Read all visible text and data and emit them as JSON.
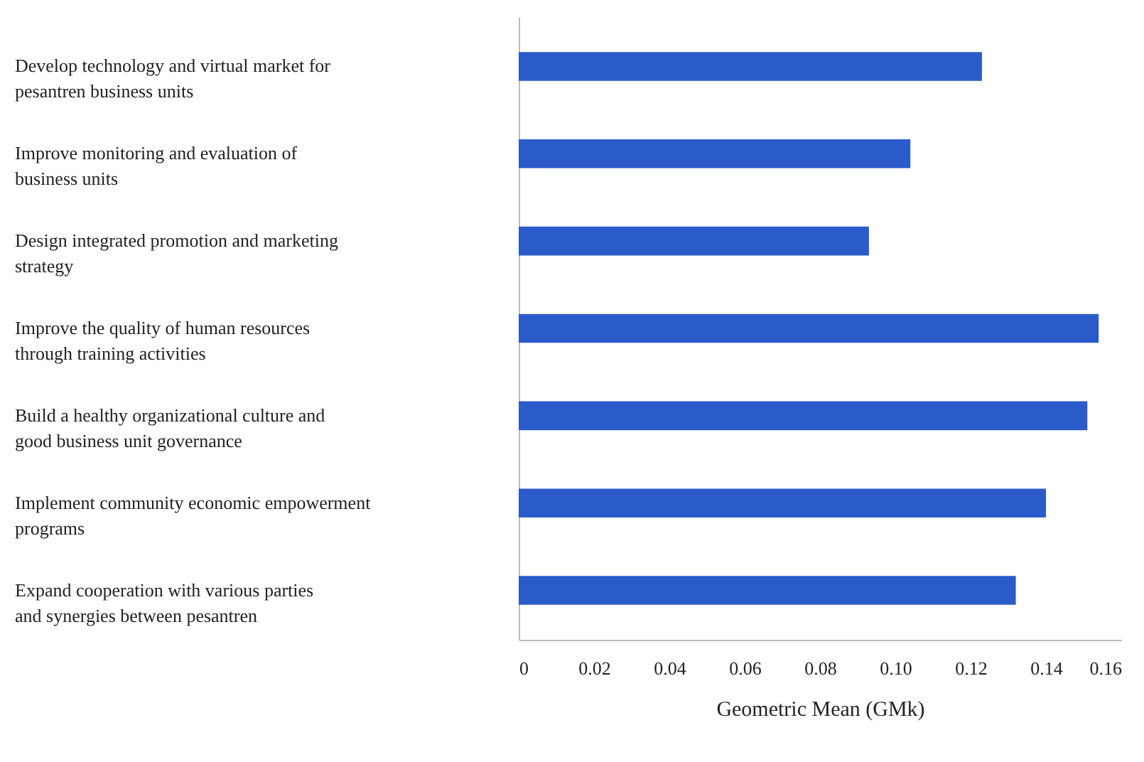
{
  "chart_data": {
    "type": "bar",
    "orientation": "horizontal",
    "xlabel": "Geometric Mean (GMk)",
    "categories": [
      "Develop technology and virtual market for pesantren business units",
      "Improve monitoring and evaluation of business units",
      "Design integrated promotion and marketing strategy",
      "Improve the quality of human resources through training activities",
      "Build a healthy organizational culture and good business unit governance",
      "Implement community economic empowerment programs",
      "Expand cooperation with various parties and synergies between pesantren"
    ],
    "values": [
      0.123,
      0.104,
      0.093,
      0.154,
      0.151,
      0.14,
      0.132
    ],
    "color": "#2a5bc8",
    "xlim": [
      0,
      0.16
    ],
    "xticks": [
      0,
      0.02,
      0.04,
      0.06,
      0.08,
      {
        "value": 0.1,
        "label": "0.10"
      },
      0.12,
      0.14,
      0.16
    ],
    "grid": false
  }
}
